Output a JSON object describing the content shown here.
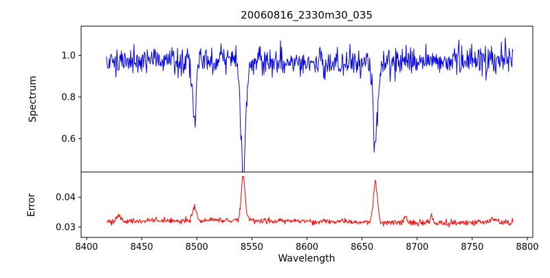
{
  "chart_data": {
    "type": "line",
    "title": "20060816_2330m30_035",
    "xlabel": "Wavelength",
    "xlim": [
      8395,
      8805
    ],
    "x_start": 8418,
    "x_end": 8787,
    "x_step": 0.5,
    "x_ticks": [
      8400,
      8450,
      8500,
      8550,
      8600,
      8650,
      8700,
      8750,
      8800
    ],
    "x_tick_labels": [
      "8400",
      "8450",
      "8500",
      "8550",
      "8600",
      "8650",
      "8700",
      "8750",
      "8800"
    ],
    "grid": false,
    "legend": "none",
    "panels": [
      {
        "name": "spectrum",
        "ylabel": "Spectrum",
        "color": "#0000ee",
        "ylim": [
          0.44,
          1.14
        ],
        "y_ticks": [
          0.6,
          0.8,
          1.0
        ],
        "y_tick_labels": [
          "0.6",
          "0.8",
          "1.0"
        ],
        "continuum": 0.97,
        "noise_sigma": 0.033,
        "seed": 1337,
        "absorption_lines": [
          {
            "center": 8498.0,
            "depth": 0.3,
            "sigma": 1.6
          },
          {
            "center": 8542.1,
            "depth": 0.52,
            "sigma": 2.2
          },
          {
            "center": 8662.1,
            "depth": 0.43,
            "sigma": 2.0
          }
        ]
      },
      {
        "name": "error",
        "ylabel": "Error",
        "color": "#ff0000",
        "ylim": [
          0.0265,
          0.0485
        ],
        "y_ticks": [
          0.03,
          0.04
        ],
        "y_tick_labels": [
          "0.03",
          "0.04"
        ],
        "baseline": 0.0318,
        "noise_sigma": 0.0005,
        "seed": 2024,
        "spikes": [
          {
            "center": 8429.0,
            "height": 0.0022,
            "sigma": 2.0
          },
          {
            "center": 8498.0,
            "height": 0.0048,
            "sigma": 1.6
          },
          {
            "center": 8542.1,
            "height": 0.0148,
            "sigma": 1.8
          },
          {
            "center": 8662.1,
            "height": 0.0135,
            "sigma": 1.8
          },
          {
            "center": 8689.0,
            "height": 0.002,
            "sigma": 1.2
          },
          {
            "center": 8713.0,
            "height": 0.0026,
            "sigma": 1.2
          },
          {
            "center": 8770.0,
            "height": 0.0015,
            "sigma": 2.5
          }
        ]
      }
    ]
  }
}
